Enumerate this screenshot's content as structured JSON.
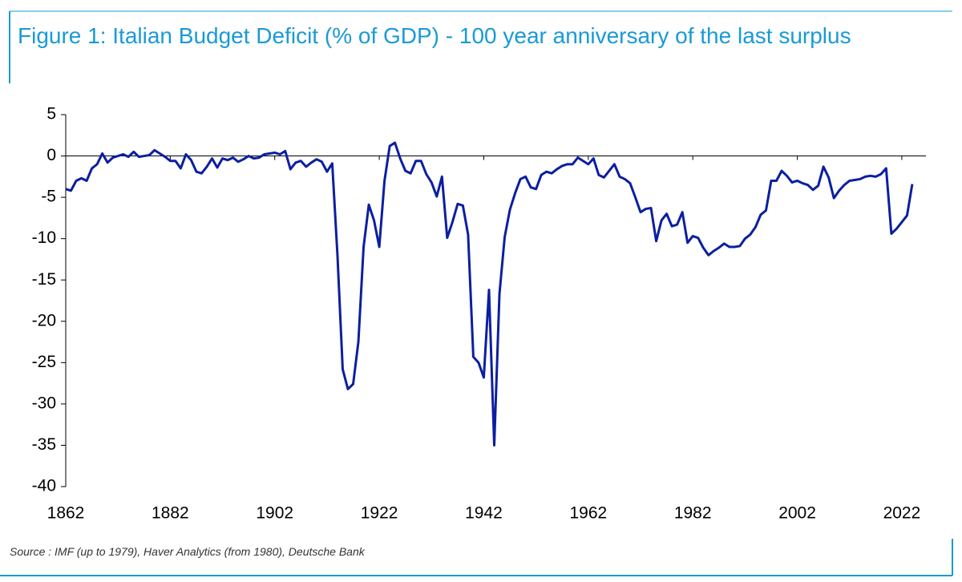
{
  "chart_data": {
    "type": "line",
    "title": "Figure 1: Italian Budget Deficit (% of GDP) - 100 year anniversary of the last surplus",
    "source": "Source : IMF (up to 1979), Haver Analytics (from 1980), Deutsche Bank",
    "x": [
      1862,
      1863,
      1864,
      1865,
      1866,
      1867,
      1868,
      1869,
      1870,
      1871,
      1872,
      1873,
      1874,
      1875,
      1876,
      1877,
      1878,
      1879,
      1880,
      1881,
      1882,
      1883,
      1884,
      1885,
      1886,
      1887,
      1888,
      1889,
      1890,
      1891,
      1892,
      1893,
      1894,
      1895,
      1896,
      1897,
      1898,
      1899,
      1900,
      1901,
      1902,
      1903,
      1904,
      1905,
      1906,
      1907,
      1908,
      1909,
      1910,
      1911,
      1912,
      1913,
      1914,
      1915,
      1916,
      1917,
      1918,
      1919,
      1920,
      1921,
      1922,
      1923,
      1924,
      1925,
      1926,
      1927,
      1928,
      1929,
      1930,
      1931,
      1932,
      1933,
      1934,
      1935,
      1936,
      1937,
      1938,
      1939,
      1940,
      1941,
      1942,
      1943,
      1944,
      1945,
      1946,
      1947,
      1948,
      1949,
      1950,
      1951,
      1952,
      1953,
      1954,
      1955,
      1956,
      1957,
      1958,
      1959,
      1960,
      1961,
      1962,
      1963,
      1964,
      1965,
      1966,
      1967,
      1968,
      1969,
      1970,
      1971,
      1972,
      1973,
      1974,
      1975,
      1976,
      1977,
      1978,
      1979,
      1980,
      1981,
      1982,
      1983,
      1984,
      1985,
      1986,
      1987,
      1988,
      1989,
      1990,
      1991,
      1992,
      1993,
      1994,
      1995,
      1996,
      1997,
      1998,
      1999,
      2000,
      2001,
      2002,
      2003,
      2004,
      2005,
      2006,
      2007,
      2008,
      2009,
      2010,
      2011,
      2012,
      2013,
      2014,
      2015,
      2016,
      2017,
      2018,
      2019,
      2020,
      2021,
      2022,
      2023,
      2024
    ],
    "series": [
      {
        "color": "#0b1fa0",
        "values": [
          -4,
          -4.2,
          -3,
          -2.7,
          -3,
          -1.5,
          -1,
          0.3,
          -0.8,
          -0.2,
          0,
          0.2,
          -0.1,
          0.5,
          -0.1,
          0,
          0.1,
          0.7,
          0.3,
          -0.1,
          -0.6,
          -0.6,
          -1.5,
          0.2,
          -0.5,
          -1.9,
          -2.1,
          -1.3,
          -0.3,
          -1.4,
          -0.3,
          -0.5,
          -0.2,
          -0.7,
          -0.4,
          0,
          -0.3,
          -0.2,
          0.2,
          0.3,
          0.4,
          0.2,
          0.6,
          -1.6,
          -0.8,
          -0.6,
          -1.3,
          -0.8,
          -0.4,
          -0.7,
          -1.9,
          -0.9,
          -12,
          -25.8,
          -28.2,
          -27.6,
          -22.5,
          -11,
          -5.9,
          -7.8,
          -11,
          -3,
          1.2,
          1.6,
          -0.3,
          -1.8,
          -2.1,
          -0.6,
          -0.6,
          -2.2,
          -3.2,
          -4.9,
          -2.5,
          -9.9,
          -8,
          -5.8,
          -6,
          -9.5,
          -24.3,
          -25,
          -26.8,
          -16.2,
          -35,
          -16.7,
          -9.8,
          -6.5,
          -4.5,
          -2.8,
          -2.5,
          -3.8,
          -4,
          -2.3,
          -1.9,
          -2.1,
          -1.6,
          -1.2,
          -1,
          -1,
          -0.2,
          -0.6,
          -1,
          -0.3,
          -2.3,
          -2.6,
          -1.8,
          -1,
          -2.5,
          -2.8,
          -3.3,
          -5,
          -6.8,
          -6.4,
          -6.3,
          -10.3,
          -7.8,
          -7,
          -8.5,
          -8.3,
          -6.8,
          -10.5,
          -9.7,
          -9.9,
          -11.1,
          -12,
          -11.5,
          -11.1,
          -10.6,
          -11,
          -11,
          -10.9,
          -10,
          -9.5,
          -8.6,
          -7.1,
          -6.6,
          -3,
          -3,
          -1.8,
          -2.4,
          -3.2,
          -3,
          -3.3,
          -3.5,
          -4.1,
          -3.6,
          -1.3,
          -2.6,
          -5.1,
          -4.2,
          -3.5,
          -3,
          -2.9,
          -2.8,
          -2.5,
          -2.4,
          -2.5,
          -2.2,
          -1.5,
          -9.4,
          -8.8,
          -8,
          -7.2,
          -3.4
        ]
      }
    ],
    "xlim": [
      1862,
      2026
    ],
    "xticks": [
      1862,
      1882,
      1902,
      1922,
      1942,
      1962,
      1982,
      2002,
      2022
    ],
    "ylim": [
      -40,
      5
    ],
    "yticks": [
      5,
      0,
      -5,
      -10,
      -15,
      -20,
      -25,
      -30,
      -35,
      -40
    ]
  }
}
